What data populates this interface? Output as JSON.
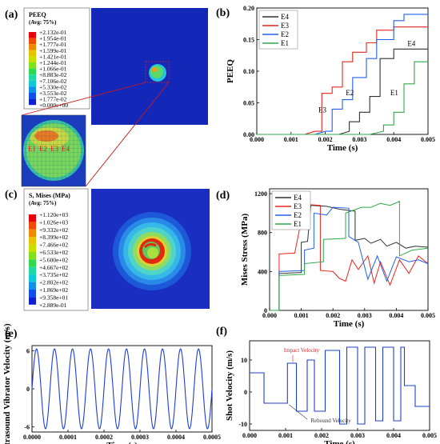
{
  "panels": {
    "a": "(a)",
    "b": "(b)",
    "c": "(c)",
    "d": "(d)",
    "e": "(e)",
    "f": "(f)"
  },
  "contour_a": {
    "title1": "PEEQ",
    "title2": "(Avg: 75%)",
    "levels": [
      "+2.132e-01",
      "+1.954e-01",
      "+1.777e-01",
      "+1.599e-01",
      "+1.421e-01",
      "+1.244e-01",
      "+1.066e-01",
      "+8.883e-02",
      "+7.106e-02",
      "+5.330e-02",
      "+3.553e-02",
      "+1.777e-02",
      "+0.000e+00"
    ],
    "zoom_labels": [
      "E1",
      "E2",
      "E3",
      "E4"
    ]
  },
  "contour_c": {
    "title1": "S, Mises (MPa)",
    "title2": "(Avg: 75%)",
    "levels": [
      "+1.120e+03",
      "+1.026e+03",
      "+9.332e+02",
      "+8.399e+02",
      "+7.466e+02",
      "+6.533e+02",
      "+5.600e+02",
      "+4.667e+02",
      "+3.735e+02",
      "+2.802e+02",
      "+1.869e+02",
      "+9.358e+01",
      "+2.889e-01"
    ]
  },
  "colors": {
    "E4": "#303030",
    "E3": "#e8251f",
    "E2": "#2160e8",
    "E1": "#2ea84a",
    "blue_line": "#1f3fd0",
    "annotation": "#e01e1e"
  },
  "chart_data": [
    {
      "id": "b",
      "type": "line",
      "xlabel": "Time (s)",
      "ylabel": "PEEQ",
      "xlim": [
        0,
        0.005
      ],
      "ylim": [
        0,
        0.2
      ],
      "xticks": [
        "0.000",
        "0.001",
        "0.002",
        "0.003",
        "0.004",
        "0.005"
      ],
      "yticks": [
        "0.00",
        "0.05",
        "0.10",
        "0.15",
        "0.20"
      ],
      "legend": "top-left",
      "series": [
        {
          "name": "E4",
          "x": [
            0,
            0.0024,
            0.0027,
            0.0027,
            0.003,
            0.003,
            0.0033,
            0.0033,
            0.0036,
            0.0036,
            0.004,
            0.004,
            0.005
          ],
          "y": [
            0,
            0,
            0.005,
            0.02,
            0.02,
            0.035,
            0.035,
            0.06,
            0.06,
            0.12,
            0.12,
            0.135,
            0.135
          ]
        },
        {
          "name": "E3",
          "x": [
            0,
            0.0014,
            0.0017,
            0.0019,
            0.0019,
            0.0022,
            0.0022,
            0.0025,
            0.0025,
            0.0028,
            0.0028,
            0.0032,
            0.0032,
            0.0035,
            0.0035,
            0.004,
            0.004,
            0.005
          ],
          "y": [
            0,
            0,
            0.005,
            0.005,
            0.065,
            0.065,
            0.075,
            0.075,
            0.115,
            0.115,
            0.13,
            0.13,
            0.145,
            0.145,
            0.165,
            0.165,
            0.17,
            0.17
          ]
        },
        {
          "name": "E2",
          "x": [
            0,
            0.0017,
            0.002,
            0.0022,
            0.0022,
            0.0025,
            0.0025,
            0.0028,
            0.0028,
            0.0032,
            0.0032,
            0.0035,
            0.0035,
            0.004,
            0.004,
            0.0043,
            0.0043,
            0.005
          ],
          "y": [
            0,
            0,
            0.005,
            0.005,
            0.04,
            0.04,
            0.055,
            0.055,
            0.09,
            0.09,
            0.12,
            0.12,
            0.15,
            0.15,
            0.18,
            0.18,
            0.19,
            0.19
          ]
        },
        {
          "name": "E1",
          "x": [
            0,
            0.0033,
            0.0037,
            0.0037,
            0.004,
            0.004,
            0.0043,
            0.0043,
            0.0046,
            0.0046,
            0.005
          ],
          "y": [
            0,
            0,
            0.005,
            0.015,
            0.015,
            0.035,
            0.035,
            0.08,
            0.08,
            0.115,
            0.115
          ]
        }
      ],
      "annotations": [
        {
          "text": "E3",
          "x": 0.0018,
          "y": 0.035
        },
        {
          "text": "E2",
          "x": 0.0026,
          "y": 0.062
        },
        {
          "text": "E1",
          "x": 0.0039,
          "y": 0.062
        },
        {
          "text": "E4",
          "x": 0.0044,
          "y": 0.14
        }
      ]
    },
    {
      "id": "d",
      "type": "line",
      "xlabel": "Time (s)",
      "ylabel": "Mises Stress (MPa)",
      "xlim": [
        0,
        0.005
      ],
      "ylim": [
        0,
        1250
      ],
      "xticks": [
        "0.000",
        "0.001",
        "0.002",
        "0.003",
        "0.004",
        "0.005"
      ],
      "yticks": [
        "0",
        "400",
        "800",
        "1200"
      ],
      "legend": "top-left",
      "series": [
        {
          "name": "E4",
          "x": [
            0,
            0.0003,
            0.0003,
            0.001,
            0.001,
            0.0012,
            0.0013,
            0.0018,
            0.0022,
            0.0027,
            0.0027,
            0.003,
            0.0032,
            0.0035,
            0.0037,
            0.004,
            0.0043,
            0.0046,
            0.005
          ],
          "y": [
            0,
            0,
            380,
            390,
            700,
            710,
            1080,
            1070,
            1040,
            1020,
            720,
            740,
            690,
            730,
            660,
            700,
            640,
            660,
            650
          ]
        },
        {
          "name": "E3",
          "x": [
            0,
            0.0003,
            0.0003,
            0.0008,
            0.0008,
            0.0011,
            0.0016,
            0.0016,
            0.002,
            0.0022,
            0.0024,
            0.0026,
            0.0028,
            0.0031,
            0.0033,
            0.0035,
            0.0038,
            0.0041,
            0.0044,
            0.0047,
            0.005
          ],
          "y": [
            0,
            0,
            580,
            590,
            600,
            1090,
            1080,
            410,
            400,
            330,
            300,
            520,
            420,
            560,
            280,
            500,
            260,
            520,
            380,
            560,
            480
          ]
        },
        {
          "name": "E2",
          "x": [
            0,
            0.0003,
            0.0003,
            0.0011,
            0.0011,
            0.0014,
            0.0014,
            0.0018,
            0.002,
            0.0025,
            0.0025,
            0.0028,
            0.0031,
            0.0034,
            0.0037,
            0.004,
            0.0044,
            0.0047,
            0.005
          ],
          "y": [
            0,
            0,
            400,
            410,
            620,
            640,
            1000,
            980,
            1060,
            1050,
            760,
            700,
            320,
            560,
            300,
            550,
            500,
            520,
            480
          ]
        },
        {
          "name": "E1",
          "x": [
            0,
            0.0003,
            0.0003,
            0.0011,
            0.0011,
            0.0017,
            0.0017,
            0.0024,
            0.0024,
            0.0029,
            0.0032,
            0.0035,
            0.0038,
            0.0041,
            0.0041,
            0.0045,
            0.005
          ],
          "y": [
            0,
            0,
            360,
            370,
            480,
            500,
            730,
            740,
            1000,
            1060,
            1060,
            1100,
            1080,
            1120,
            560,
            620,
            640
          ]
        }
      ]
    },
    {
      "id": "e",
      "type": "line",
      "xlabel": "Time (s)",
      "ylabel": "Ultrasound Vibrator Velocity (m/s)",
      "xlim": [
        0,
        0.0005
      ],
      "ylim": [
        -6.8,
        6.8
      ],
      "xticks": [
        "0.0000",
        "0.0001",
        "0.0002",
        "0.0003",
        "0.0004",
        "0.0005"
      ],
      "yticks": [
        "-6",
        "0",
        "6"
      ],
      "amplitude": 6.28,
      "frequency_hz": 20000
    },
    {
      "id": "f",
      "type": "line",
      "xlabel": "Time (s)",
      "ylabel": "Shot Velocity (m/s)",
      "xlim": [
        0,
        0.005
      ],
      "ylim": [
        -12,
        16
      ],
      "xticks": [
        "0.000",
        "0.001",
        "0.002",
        "0.003",
        "0.004",
        "0.005"
      ],
      "yticks": [
        "-10",
        "0",
        "10"
      ],
      "x": [
        0,
        0.00015,
        0.00015,
        0.0004,
        0.0004,
        0.00105,
        0.00105,
        0.0013,
        0.0013,
        0.0016,
        0.0016,
        0.0018,
        0.0018,
        0.0021,
        0.0021,
        0.0025,
        0.0025,
        0.0027,
        0.0027,
        0.003,
        0.003,
        0.0032,
        0.0032,
        0.0035,
        0.0035,
        0.0037,
        0.0037,
        0.004,
        0.004,
        0.0042,
        0.0042,
        0.0043,
        0.0043,
        0.0046,
        0.0046,
        0.005
      ],
      "y": [
        6,
        6,
        6,
        6,
        -3.5,
        -3.5,
        9,
        9,
        -6,
        -6,
        10,
        10,
        -6,
        -6,
        13,
        13,
        -10,
        -10,
        14,
        14,
        -10,
        -10,
        14,
        14,
        -9,
        -9,
        14,
        14,
        -9,
        -9,
        14,
        14,
        2,
        2,
        -4.5,
        -4.5
      ],
      "annotations": [
        {
          "text": "Impact Velocity",
          "x": 0.00095,
          "y": 12.5
        },
        {
          "text": "Rebound Velocity",
          "x": 0.0017,
          "y": -9.5
        }
      ]
    }
  ]
}
